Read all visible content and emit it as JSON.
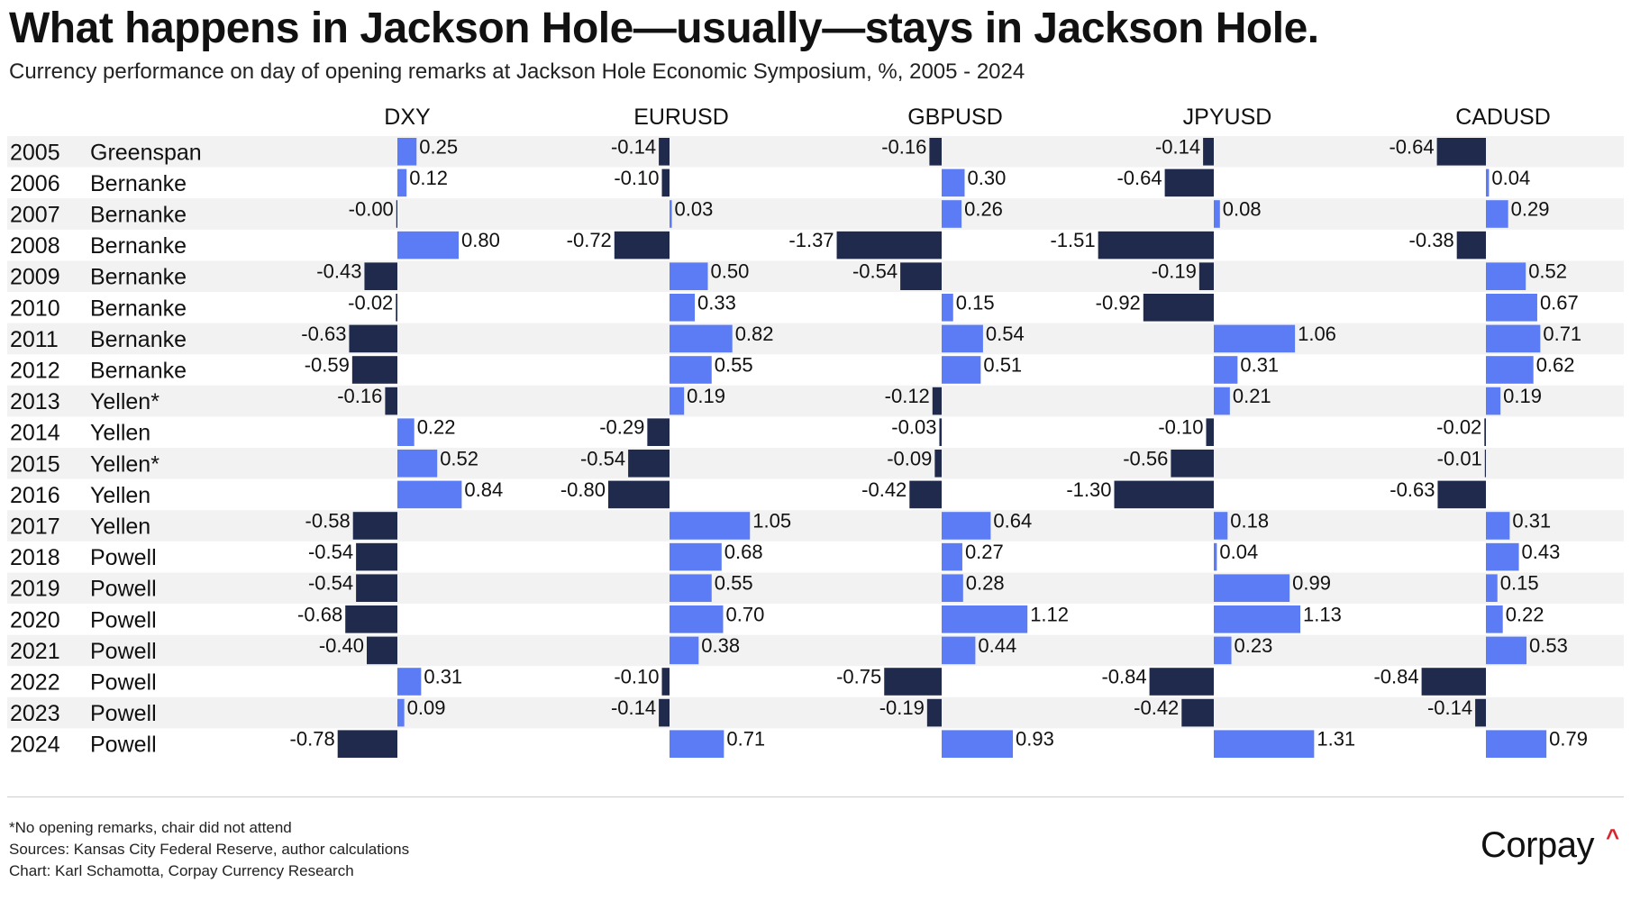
{
  "title": "What happens in Jackson Hole—usually—stays in Jackson Hole.",
  "subtitle": "Currency performance on day of opening remarks at Jackson Hole Economic Symposium, %, 2005 - 2024",
  "chart_data": {
    "type": "bar",
    "orientation": "horizontal",
    "panels": [
      "DXY",
      "EURUSD",
      "GBPUSD",
      "JPYUSD",
      "CADUSD"
    ],
    "rows": [
      {
        "year": "2005",
        "chair": "Greenspan",
        "values": [
          0.25,
          -0.14,
          -0.16,
          -0.14,
          -0.64
        ],
        "labels": [
          "0.25",
          "-0.14",
          "-0.16",
          "-0.14",
          "-0.64"
        ]
      },
      {
        "year": "2006",
        "chair": "Bernanke",
        "values": [
          0.12,
          -0.1,
          0.3,
          -0.64,
          0.04
        ],
        "labels": [
          "0.12",
          "-0.10",
          "0.30",
          "-0.64",
          "0.04"
        ]
      },
      {
        "year": "2007",
        "chair": "Bernanke",
        "values": [
          -0.0,
          0.03,
          0.26,
          0.08,
          0.29
        ],
        "labels": [
          "-0.00",
          "0.03",
          "0.26",
          "0.08",
          "0.29"
        ]
      },
      {
        "year": "2008",
        "chair": "Bernanke",
        "values": [
          0.8,
          -0.72,
          -1.37,
          -1.51,
          -0.38
        ],
        "labels": [
          "0.80",
          "-0.72",
          "-1.37",
          "-1.51",
          "-0.38"
        ]
      },
      {
        "year": "2009",
        "chair": "Bernanke",
        "values": [
          -0.43,
          0.5,
          -0.54,
          -0.19,
          0.52
        ],
        "labels": [
          "-0.43",
          "0.50",
          "-0.54",
          "-0.19",
          "0.52"
        ]
      },
      {
        "year": "2010",
        "chair": "Bernanke",
        "values": [
          -0.02,
          0.33,
          0.15,
          -0.92,
          0.67
        ],
        "labels": [
          "-0.02",
          "0.33",
          "0.15",
          "-0.92",
          "0.67"
        ]
      },
      {
        "year": "2011",
        "chair": "Bernanke",
        "values": [
          -0.63,
          0.82,
          0.54,
          1.06,
          0.71
        ],
        "labels": [
          "-0.63",
          "0.82",
          "0.54",
          "1.06",
          "0.71"
        ]
      },
      {
        "year": "2012",
        "chair": "Bernanke",
        "values": [
          -0.59,
          0.55,
          0.51,
          0.31,
          0.62
        ],
        "labels": [
          "-0.59",
          "0.55",
          "0.51",
          "0.31",
          "0.62"
        ]
      },
      {
        "year": "2013",
        "chair": "Yellen*",
        "values": [
          -0.16,
          0.19,
          -0.12,
          0.21,
          0.19
        ],
        "labels": [
          "-0.16",
          "0.19",
          "-0.12",
          "0.21",
          "0.19"
        ]
      },
      {
        "year": "2014",
        "chair": "Yellen",
        "values": [
          0.22,
          -0.29,
          -0.03,
          -0.1,
          -0.02
        ],
        "labels": [
          "0.22",
          "-0.29",
          "-0.03",
          "-0.10",
          "-0.02"
        ]
      },
      {
        "year": "2015",
        "chair": "Yellen*",
        "values": [
          0.52,
          -0.54,
          -0.09,
          -0.56,
          -0.01
        ],
        "labels": [
          "0.52",
          "-0.54",
          "-0.09",
          "-0.56",
          "-0.01"
        ]
      },
      {
        "year": "2016",
        "chair": "Yellen",
        "values": [
          0.84,
          -0.8,
          -0.42,
          -1.3,
          -0.63
        ],
        "labels": [
          "0.84",
          "-0.80",
          "-0.42",
          "-1.30",
          "-0.63"
        ]
      },
      {
        "year": "2017",
        "chair": "Yellen",
        "values": [
          -0.58,
          1.05,
          0.64,
          0.18,
          0.31
        ],
        "labels": [
          "-0.58",
          "1.05",
          "0.64",
          "0.18",
          "0.31"
        ]
      },
      {
        "year": "2018",
        "chair": "Powell",
        "values": [
          -0.54,
          0.68,
          0.27,
          0.04,
          0.43
        ],
        "labels": [
          "-0.54",
          "0.68",
          "0.27",
          "0.04",
          "0.43"
        ]
      },
      {
        "year": "2019",
        "chair": "Powell",
        "values": [
          -0.54,
          0.55,
          0.28,
          0.99,
          0.15
        ],
        "labels": [
          "-0.54",
          "0.55",
          "0.28",
          "0.99",
          "0.15"
        ]
      },
      {
        "year": "2020",
        "chair": "Powell",
        "values": [
          -0.68,
          0.7,
          1.12,
          1.13,
          0.22
        ],
        "labels": [
          "-0.68",
          "0.70",
          "1.12",
          "1.13",
          "0.22"
        ]
      },
      {
        "year": "2021",
        "chair": "Powell",
        "values": [
          -0.4,
          0.38,
          0.44,
          0.23,
          0.53
        ],
        "labels": [
          "-0.40",
          "0.38",
          "0.44",
          "0.23",
          "0.53"
        ]
      },
      {
        "year": "2022",
        "chair": "Powell",
        "values": [
          0.31,
          -0.1,
          -0.75,
          -0.84,
          -0.84
        ],
        "labels": [
          "0.31",
          "-0.10",
          "-0.75",
          "-0.84",
          "-0.84"
        ]
      },
      {
        "year": "2023",
        "chair": "Powell",
        "values": [
          0.09,
          -0.14,
          -0.19,
          -0.42,
          -0.14
        ],
        "labels": [
          "0.09",
          "-0.14",
          "-0.19",
          "-0.42",
          "-0.14"
        ]
      },
      {
        "year": "2024",
        "chair": "Powell",
        "values": [
          -0.78,
          0.71,
          0.93,
          1.31,
          0.79
        ],
        "labels": [
          "-0.78",
          "0.71",
          "0.93",
          "1.31",
          "0.79"
        ]
      }
    ],
    "colors": {
      "positive": "#5b7cf5",
      "negative": "#1f2a4d",
      "row_stripe": "#f2f2f2"
    },
    "grid": false
  },
  "footnotes": {
    "note": "*No opening remarks, chair did not attend",
    "sources": "Sources: Kansas City Federal Reserve, author calculations",
    "credit": "Chart: Karl Schamotta, Corpay Currency Research"
  },
  "brand": {
    "name": "Corpay",
    "mark": "^"
  }
}
